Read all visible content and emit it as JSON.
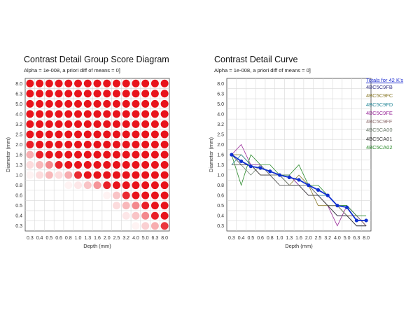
{
  "left_panel": {
    "title": "Contrast Detail Group Score Diagram",
    "subtitle": "Alpha = 1e-008, a priori diff of means = 0]"
  },
  "right_panel": {
    "title": "Contrast Detail Curve",
    "subtitle": "Alpha = 1e-008, a priori diff of means = 0]"
  },
  "legend": {
    "title": "Totals for 42 K's",
    "items": [
      {
        "label": "4BC5C9FB",
        "color": "#3a3a8a"
      },
      {
        "label": "4BC5C9FC",
        "color": "#8a7a2a"
      },
      {
        "label": "4BC5C9FD",
        "color": "#2a8a9a"
      },
      {
        "label": "4BC5C9FE",
        "color": "#9a2a9a"
      },
      {
        "label": "4BC5C9FF",
        "color": "#8a6a6a"
      },
      {
        "label": "4BC5CA00",
        "color": "#6a7a6a"
      },
      {
        "label": "4BC5CA01",
        "color": "#3a3a3a"
      },
      {
        "label": "4BC5CA02",
        "color": "#2a8a2a"
      }
    ]
  },
  "chart_data": [
    {
      "type": "heatmap",
      "title": "Contrast Detail Group Score Diagram",
      "xlabel": "Depth (mm)",
      "ylabel": "Diameter (mm)",
      "x_categories": [
        "0.3",
        "0.4",
        "0.5",
        "0.6",
        "0.8",
        "1.0",
        "1.3",
        "1.6",
        "2.0",
        "2.5",
        "3.2",
        "4.0",
        "5.0",
        "6.3",
        "8.0"
      ],
      "y_categories": [
        "8.0",
        "6.3",
        "5.0",
        "4.0",
        "3.2",
        "2.5",
        "2.0",
        "1.6",
        "1.3",
        "1.0",
        "0.8",
        "0.6",
        "0.5",
        "0.4",
        "0.3"
      ],
      "grid": true,
      "color": "#e8141c",
      "scores": [
        [
          1,
          1,
          1,
          1,
          1,
          1,
          1,
          1,
          1,
          1,
          1,
          1,
          1,
          1,
          1
        ],
        [
          1,
          1,
          1,
          1,
          1,
          1,
          1,
          1,
          1,
          1,
          1,
          1,
          1,
          1,
          1
        ],
        [
          1,
          1,
          1,
          1,
          1,
          1,
          1,
          1,
          1,
          1,
          1,
          1,
          1,
          1,
          1
        ],
        [
          1,
          1,
          1,
          1,
          1,
          1,
          1,
          1,
          1,
          1,
          1,
          1,
          1,
          1,
          1
        ],
        [
          1,
          1,
          1,
          1,
          1,
          1,
          1,
          1,
          1,
          1,
          1,
          1,
          1,
          1,
          1
        ],
        [
          1,
          1,
          1,
          1,
          1,
          1,
          1,
          1,
          1,
          1,
          1,
          1,
          1,
          1,
          1
        ],
        [
          0.95,
          1,
          1,
          1,
          1,
          1,
          1,
          1,
          1,
          1,
          1,
          1,
          1,
          1,
          1
        ],
        [
          0.35,
          0.95,
          1,
          1,
          1,
          1,
          1,
          1,
          1,
          1,
          1,
          1,
          1,
          1,
          1
        ],
        [
          0.15,
          0.3,
          0.5,
          0.95,
          1,
          1,
          1,
          1,
          1,
          1,
          1,
          1,
          1,
          1,
          1
        ],
        [
          0.05,
          0.15,
          0.3,
          0.15,
          0.35,
          0.9,
          1,
          1,
          1,
          1,
          1,
          1,
          1,
          1,
          1
        ],
        [
          0,
          0,
          0,
          0,
          0.05,
          0.1,
          0.25,
          0.45,
          0.95,
          1,
          1,
          1,
          1,
          1,
          1
        ],
        [
          0,
          0,
          0,
          0,
          0,
          0,
          0,
          0,
          0.05,
          0.25,
          0.9,
          1,
          1,
          1,
          1
        ],
        [
          0,
          0,
          0,
          0,
          0,
          0,
          0,
          0,
          0,
          0.15,
          0.3,
          0.5,
          0.95,
          1,
          1
        ],
        [
          0,
          0,
          0,
          0,
          0,
          0,
          0,
          0,
          0,
          0,
          0.1,
          0.25,
          0.5,
          0.95,
          1
        ],
        [
          0,
          0,
          0,
          0,
          0,
          0,
          0,
          0,
          0,
          0,
          0,
          0.05,
          0.2,
          0.35,
          0.85
        ]
      ]
    },
    {
      "type": "line",
      "title": "Contrast Detail Curve",
      "xlabel": "Depth (mm)",
      "ylabel": "Diameter (mm)",
      "x_categories": [
        "0.3",
        "0.4",
        "0.5",
        "0.6",
        "0.8",
        "1.0",
        "1.3",
        "1.6",
        "2.0",
        "2.5",
        "3.2",
        "4.0",
        "5.0",
        "6.3",
        "8.0"
      ],
      "y_categories": [
        "8.0",
        "6.3",
        "5.0",
        "4.0",
        "3.2",
        "2.5",
        "2.0",
        "1.6",
        "1.3",
        "1.0",
        "0.8",
        "0.6",
        "0.5",
        "0.4",
        "0.3"
      ],
      "grid": true,
      "legend_position": "right",
      "series": [
        {
          "name": "Totals for 42 K's",
          "color": "#1030d0",
          "bold": true,
          "markers": true,
          "values": [
            1.6,
            1.4,
            1.25,
            1.2,
            1.1,
            1.0,
            0.95,
            0.9,
            0.8,
            0.7,
            0.6,
            0.5,
            0.48,
            0.35,
            0.35
          ]
        },
        {
          "name": "4BC5C9FB",
          "color": "#3a3a8a",
          "values": [
            1.6,
            1.3,
            1.3,
            1.0,
            1.0,
            1.0,
            0.8,
            0.8,
            0.6,
            0.6,
            0.5,
            0.4,
            0.4,
            0.3,
            0.3
          ]
        },
        {
          "name": "4BC5C9FC",
          "color": "#8a7a2a",
          "values": [
            1.6,
            1.6,
            1.3,
            1.0,
            1.0,
            1.0,
            0.8,
            1.0,
            0.8,
            0.5,
            0.5,
            0.5,
            0.4,
            0.4,
            0.3
          ]
        },
        {
          "name": "4BC5C9FD",
          "color": "#2a8a9a",
          "values": [
            1.3,
            1.6,
            1.3,
            1.3,
            1.0,
            1.0,
            1.0,
            0.8,
            0.8,
            0.6,
            0.6,
            0.5,
            0.5,
            0.4,
            0.3
          ]
        },
        {
          "name": "4BC5C9FE",
          "color": "#9a2a9a",
          "values": [
            1.6,
            2.0,
            1.3,
            1.3,
            1.0,
            1.0,
            1.0,
            0.8,
            0.8,
            0.6,
            0.5,
            0.3,
            0.5,
            0.4,
            0.3
          ]
        },
        {
          "name": "4BC5C9FF",
          "color": "#8a6a6a",
          "values": [
            1.6,
            1.3,
            1.3,
            1.0,
            1.0,
            1.0,
            0.8,
            0.8,
            0.6,
            0.6,
            0.5,
            0.5,
            0.4,
            0.4,
            0.3
          ]
        },
        {
          "name": "4BC5CA00",
          "color": "#6a7a6a",
          "values": [
            1.6,
            1.3,
            1.0,
            1.3,
            1.0,
            1.0,
            0.8,
            0.8,
            0.8,
            0.6,
            0.5,
            0.5,
            0.4,
            0.3,
            0.3
          ]
        },
        {
          "name": "4BC5CA01",
          "color": "#3a3a3a",
          "values": [
            1.3,
            1.3,
            1.3,
            1.0,
            1.0,
            0.8,
            0.8,
            0.8,
            0.6,
            0.6,
            0.5,
            0.4,
            0.4,
            0.3,
            0.3
          ]
        },
        {
          "name": "4BC5CA02",
          "color": "#2a8a2a",
          "values": [
            1.6,
            0.8,
            1.6,
            1.3,
            1.3,
            1.0,
            1.0,
            1.3,
            0.8,
            0.8,
            0.6,
            0.5,
            0.5,
            0.4,
            0.4
          ]
        }
      ]
    }
  ]
}
